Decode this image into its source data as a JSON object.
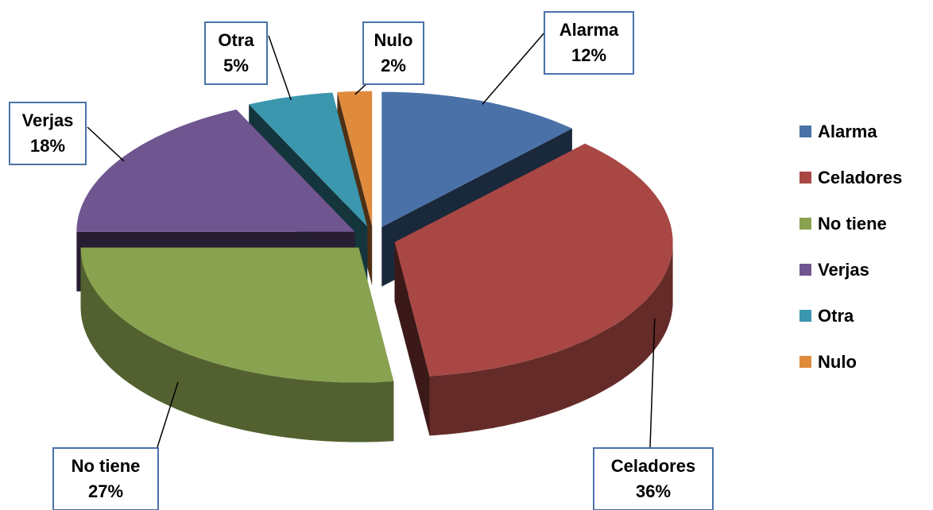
{
  "chart_data": {
    "type": "pie",
    "categories": [
      "Alarma",
      "Celadores",
      "No tiene",
      "Verjas",
      "Otra",
      "Nulo"
    ],
    "values": [
      12,
      36,
      27,
      18,
      5,
      2
    ],
    "value_labels": [
      "12%",
      "36%",
      "27%",
      "18%",
      "5%",
      "2%"
    ],
    "colors": [
      "#4a72a8",
      "#a84744",
      "#88a24f",
      "#705690",
      "#3b97ad",
      "#e08a3c"
    ],
    "legend": "right"
  }
}
